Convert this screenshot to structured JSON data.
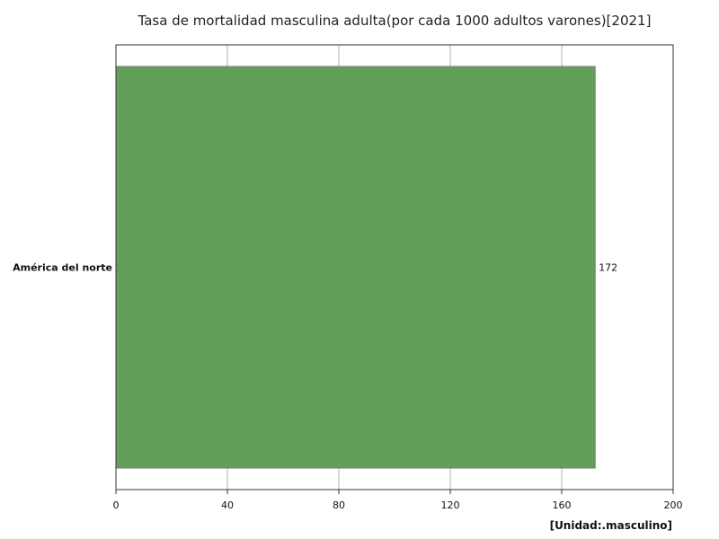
{
  "chart_data": {
    "type": "bar",
    "orientation": "horizontal",
    "title": "Tasa de mortalidad masculina adulta(por cada 1000 adultos varones)[2021]",
    "unit_label": "[Unidad:.masculino]",
    "categories": [
      "América del norte"
    ],
    "values": [
      172
    ],
    "value_labels": [
      "172"
    ],
    "xlim": [
      0,
      200
    ],
    "x_ticks": [
      0,
      40,
      80,
      120,
      160,
      200
    ],
    "x_tick_labels": [
      "0",
      "40",
      "80",
      "120",
      "160",
      "200"
    ],
    "grid": true,
    "bar_color": "#639f5b"
  }
}
